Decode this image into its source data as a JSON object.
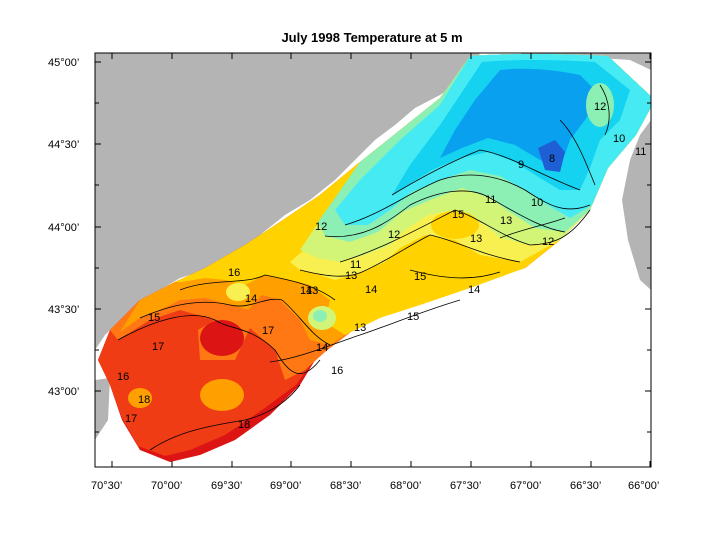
{
  "title": "July 1998  Temperature at 5 m",
  "lat_ticks": [
    "45°00’",
    "44°30’",
    "44°00’",
    "43°30’",
    "43°00’"
  ],
  "lon_ticks": [
    "70°30’",
    "70°00’",
    "69°30’",
    "69°00’",
    "68°30’",
    "68°00’",
    "67°30’",
    "67°00’",
    "66°30’",
    "66°00’"
  ],
  "contour_labels": [
    "8",
    "9",
    "10",
    "10",
    "11",
    "11",
    "11",
    "12",
    "12",
    "12",
    "12",
    "13",
    "13",
    "13",
    "13",
    "13",
    "14",
    "14",
    "14",
    "14",
    "14",
    "15",
    "15",
    "15",
    "15",
    "16",
    "16",
    "16",
    "17",
    "17",
    "17",
    "18",
    "18"
  ],
  "colors": {
    "land": "#b4b4b4",
    "t8": "#1e5fd6",
    "t9": "#0aa0f0",
    "t10": "#14d2f0",
    "t11": "#46eaf2",
    "t12": "#8cf0b4",
    "t13": "#d2f578",
    "t14": "#f8f050",
    "t15": "#ffd200",
    "t16": "#ffa000",
    "t17": "#ff7814",
    "t18": "#f03c14",
    "t19": "#dc1414"
  }
}
